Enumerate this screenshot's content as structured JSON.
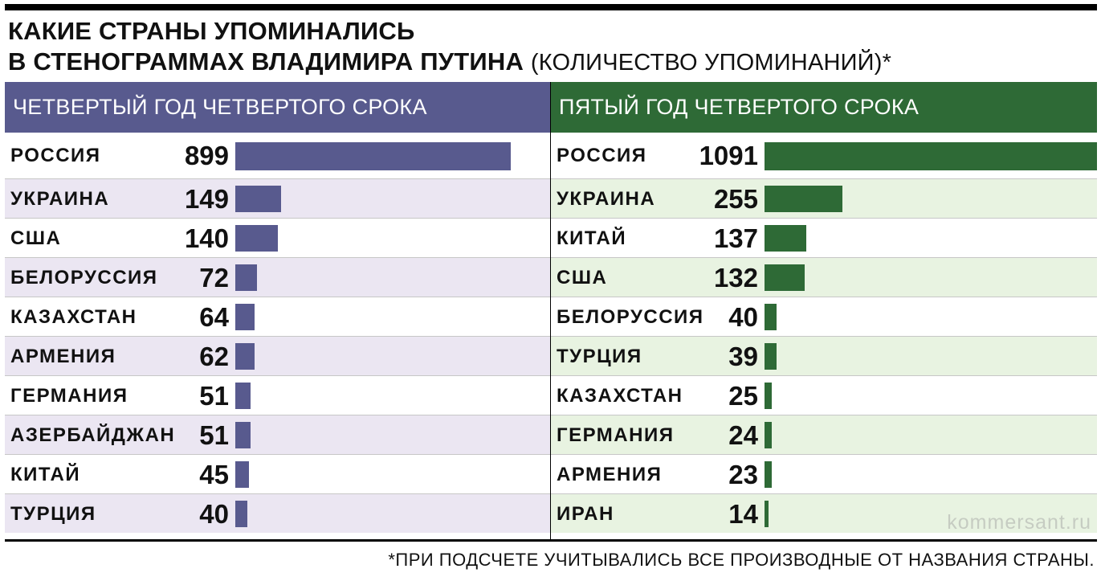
{
  "title": {
    "line1": "КАКИЕ СТРАНЫ УПОМИНАЛИСЬ",
    "line2": "В СТЕНОГРАММАХ ВЛАДИМИРА ПУТИНА",
    "subtitle": "(КОЛИЧЕСТВО УПОМИНАНИЙ)*"
  },
  "footnote": "*ПРИ ПОДСЧЕТЕ УЧИТЫВАЛИСЬ ВСЕ ПРОИЗВОДНЫЕ ОТ НАЗВАНИЯ СТРАНЫ.",
  "watermark": "kommersant.ru",
  "colors": {
    "left_accent": "#585a8e",
    "right_accent": "#2e6a36",
    "left_alt_row": "#ebe6f2",
    "right_alt_row": "#e8f3e1"
  },
  "chart_data": [
    {
      "type": "bar",
      "orientation": "horizontal",
      "title": "ЧЕТВЕРТЫЙ ГОД ЧЕТВЕРТОГО СРОКА",
      "categories": [
        "РОССИЯ",
        "УКРАИНА",
        "США",
        "БЕЛОРУССИЯ",
        "КАЗАХСТАН",
        "АРМЕНИЯ",
        "ГЕРМАНИЯ",
        "АЗЕРБАЙДЖАН",
        "КИТАЙ",
        "ТУРЦИЯ"
      ],
      "values": [
        899,
        149,
        140,
        72,
        64,
        62,
        51,
        51,
        45,
        40
      ],
      "labels": [
        "899",
        "149",
        "140",
        "72",
        "64",
        "62",
        "51",
        "51",
        "45",
        "40"
      ]
    },
    {
      "type": "bar",
      "orientation": "horizontal",
      "title": "ПЯТЫЙ ГОД ЧЕТВЕРТОГО СРОКА",
      "categories": [
        "РОССИЯ",
        "УКРАИНА",
        "КИТАЙ",
        "США",
        "БЕЛОРУССИЯ",
        "ТУРЦИЯ",
        "КАЗАХСТАН",
        "ГЕРМАНИЯ",
        "АРМЕНИЯ",
        "ИРАН"
      ],
      "values": [
        1091,
        255,
        137,
        132,
        40,
        39,
        25,
        24,
        23,
        14
      ],
      "labels": [
        "1091",
        "255",
        "137",
        "132",
        "40",
        "39",
        "25",
        "24",
        "23",
        "14"
      ]
    }
  ]
}
